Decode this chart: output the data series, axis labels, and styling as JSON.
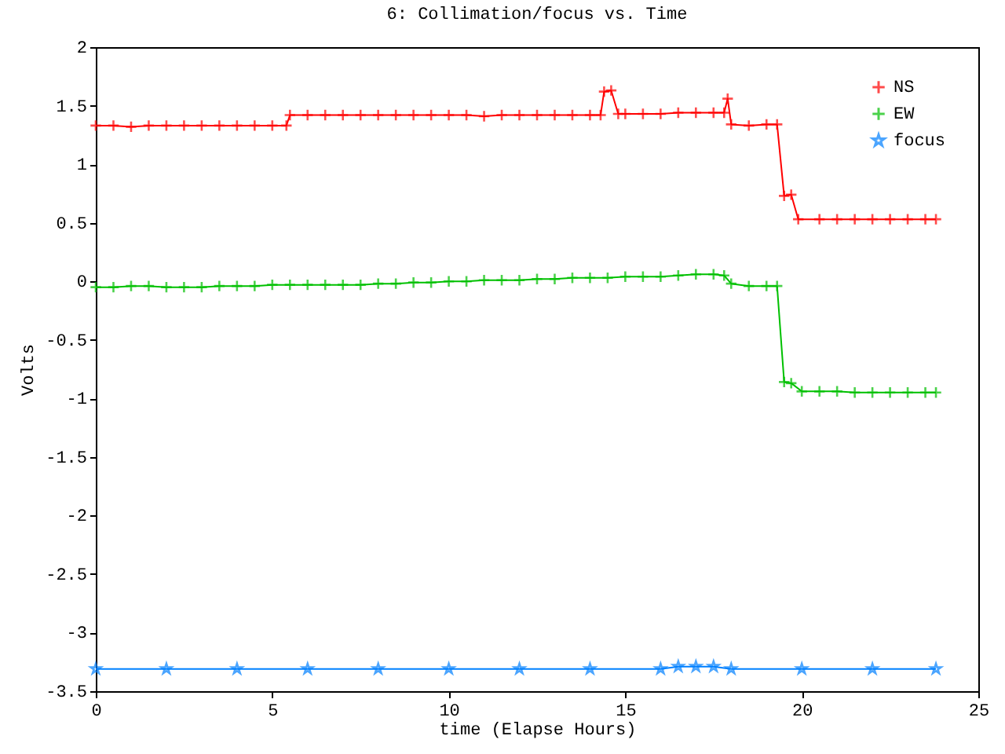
{
  "chart_data": {
    "type": "line",
    "title": "6: Collimation/focus vs. Time",
    "xlabel": "time (Elapse Hours)",
    "ylabel": "Volts",
    "xlim": [
      0,
      25
    ],
    "xticks": [
      0,
      5,
      10,
      15,
      20,
      25
    ],
    "ylim": [
      -3.5,
      2
    ],
    "yticks": [
      -3.5,
      -3,
      -2.5,
      -2,
      -1.5,
      -1,
      -0.5,
      0,
      0.5,
      1,
      1.5,
      2
    ],
    "grid": false,
    "legend": "top right",
    "series": [
      {
        "name": "NS",
        "color": "#ff0000",
        "marker": "cross",
        "x": [
          0,
          0.5,
          1,
          1.5,
          2,
          2.5,
          3,
          3.5,
          4,
          4.5,
          5,
          5.4,
          5.5,
          6,
          6.5,
          7,
          7.5,
          8,
          8.5,
          9,
          9.5,
          10,
          10.5,
          11,
          11.5,
          12,
          12.5,
          13,
          13.5,
          14,
          14.3,
          14.4,
          14.6,
          14.8,
          15,
          15.5,
          16,
          16.5,
          17,
          17.5,
          17.8,
          17.9,
          18,
          18.5,
          19,
          19.3,
          19.5,
          19.7,
          19.9,
          20.5,
          21,
          21.5,
          22,
          22.5,
          23,
          23.5,
          23.8
        ],
        "values": [
          1.33,
          1.33,
          1.32,
          1.33,
          1.33,
          1.33,
          1.33,
          1.33,
          1.33,
          1.33,
          1.33,
          1.33,
          1.42,
          1.42,
          1.42,
          1.42,
          1.42,
          1.42,
          1.42,
          1.42,
          1.42,
          1.42,
          1.42,
          1.41,
          1.42,
          1.42,
          1.42,
          1.42,
          1.42,
          1.42,
          1.42,
          1.62,
          1.63,
          1.43,
          1.43,
          1.43,
          1.43,
          1.44,
          1.44,
          1.44,
          1.44,
          1.56,
          1.34,
          1.33,
          1.34,
          1.34,
          0.73,
          0.74,
          0.53,
          0.53,
          0.53,
          0.53,
          0.53,
          0.53,
          0.53,
          0.53,
          0.53
        ]
      },
      {
        "name": "EW",
        "color": "#00c000",
        "marker": "cross",
        "x": [
          0,
          0.5,
          1,
          1.5,
          2,
          2.5,
          3,
          3.5,
          4,
          4.5,
          5,
          5.5,
          6,
          6.5,
          7,
          7.5,
          8,
          8.5,
          9,
          9.5,
          10,
          10.5,
          11,
          11.5,
          12,
          12.5,
          13,
          13.5,
          14,
          14.5,
          15,
          15.5,
          16,
          16.5,
          17,
          17.5,
          17.8,
          18,
          18.5,
          19,
          19.3,
          19.5,
          19.7,
          20,
          20.5,
          21,
          21.5,
          22,
          22.5,
          23,
          23.5,
          23.8
        ],
        "values": [
          -0.05,
          -0.05,
          -0.04,
          -0.04,
          -0.05,
          -0.05,
          -0.05,
          -0.04,
          -0.04,
          -0.04,
          -0.03,
          -0.03,
          -0.03,
          -0.03,
          -0.03,
          -0.03,
          -0.02,
          -0.02,
          -0.01,
          -0.01,
          0,
          0,
          0.01,
          0.01,
          0.01,
          0.02,
          0.02,
          0.03,
          0.03,
          0.03,
          0.04,
          0.04,
          0.04,
          0.05,
          0.06,
          0.06,
          0.05,
          -0.02,
          -0.04,
          -0.04,
          -0.04,
          -0.86,
          -0.87,
          -0.94,
          -0.94,
          -0.94,
          -0.95,
          -0.95,
          -0.95,
          -0.95,
          -0.95,
          -0.95
        ]
      },
      {
        "name": "focus",
        "color": "#0080ff",
        "marker": "star",
        "x": [
          0,
          2,
          4,
          6,
          8,
          10,
          12,
          14,
          16,
          16.5,
          17,
          17.5,
          18,
          20,
          22,
          23.8
        ],
        "values": [
          -3.31,
          -3.31,
          -3.31,
          -3.31,
          -3.31,
          -3.31,
          -3.31,
          -3.31,
          -3.31,
          -3.29,
          -3.29,
          -3.29,
          -3.31,
          -3.31,
          -3.31,
          -3.31
        ]
      }
    ]
  }
}
